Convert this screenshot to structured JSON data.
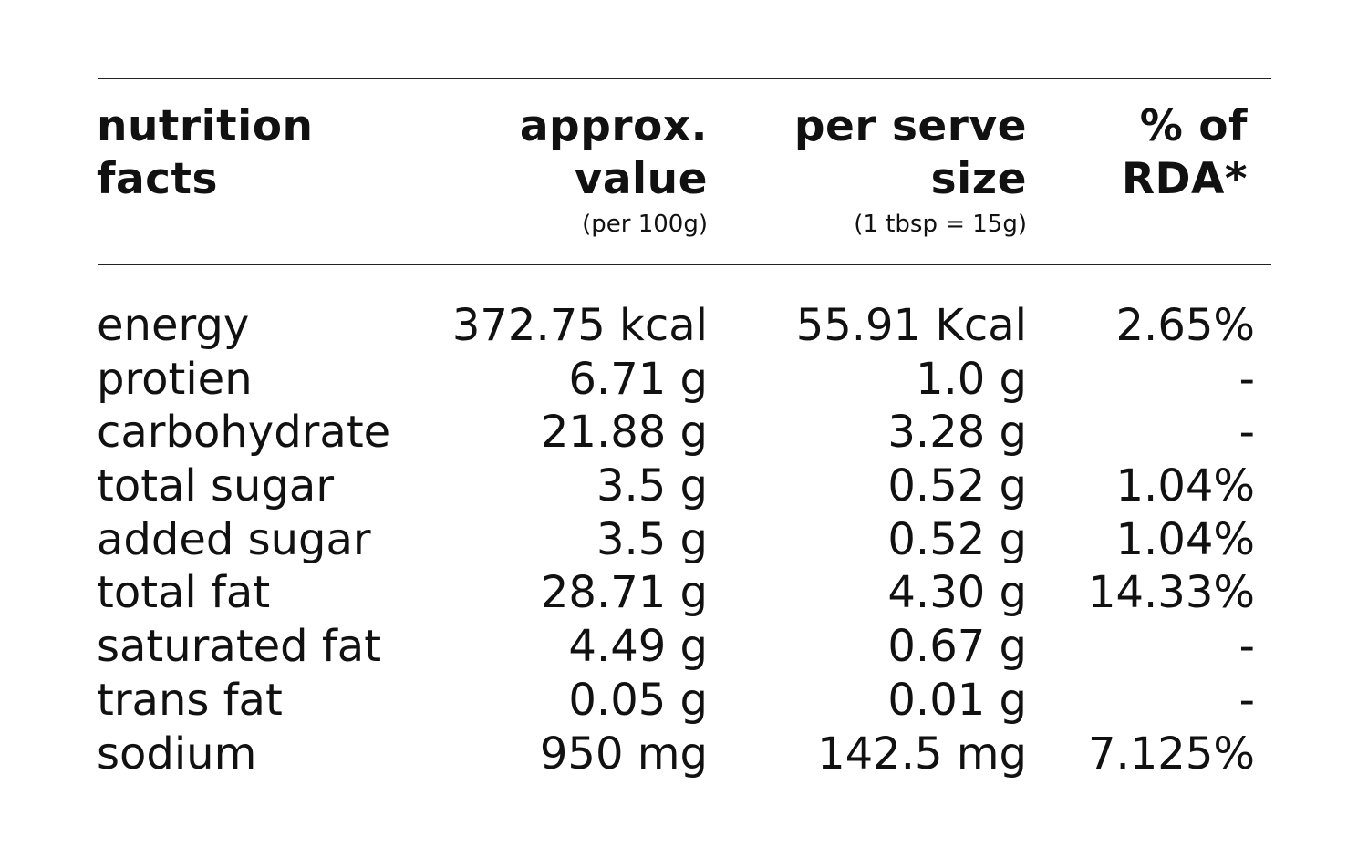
{
  "table": {
    "headers": {
      "nutrient": {
        "line1": "nutrition",
        "line2": "facts"
      },
      "approx": {
        "line1": "approx.",
        "line2": "value",
        "sub": "(per 100g)"
      },
      "serve": {
        "line1": "per serve",
        "line2": "size",
        "sub": "(1 tbsp = 15g)"
      },
      "rda": {
        "line1": "% of",
        "line2": "RDA*"
      }
    },
    "rows": [
      {
        "name": "energy",
        "approx": "372.75 kcal",
        "serve": "55.91 Kcal",
        "rda": "2.65%"
      },
      {
        "name": "protien",
        "approx": "6.71 g",
        "serve": "1.0 g",
        "rda": "-"
      },
      {
        "name": "carbohydrate",
        "approx": "21.88 g",
        "serve": "3.28 g",
        "rda": "-"
      },
      {
        "name": "total sugar",
        "approx": "3.5 g",
        "serve": "0.52 g",
        "rda": "1.04%"
      },
      {
        "name": "added sugar",
        "approx": "3.5 g",
        "serve": "0.52 g",
        "rda": "1.04%"
      },
      {
        "name": "total fat",
        "approx": "28.71 g",
        "serve": "4.30 g",
        "rda": "14.33%"
      },
      {
        "name": "saturated fat",
        "approx": "4.49 g",
        "serve": "0.67 g",
        "rda": "-"
      },
      {
        "name": "trans fat",
        "approx": "0.05 g",
        "serve": "0.01 g",
        "rda": "-"
      },
      {
        "name": "sodium",
        "approx": "950 mg",
        "serve": "142.5 mg",
        "rda": "7.125%"
      }
    ]
  }
}
